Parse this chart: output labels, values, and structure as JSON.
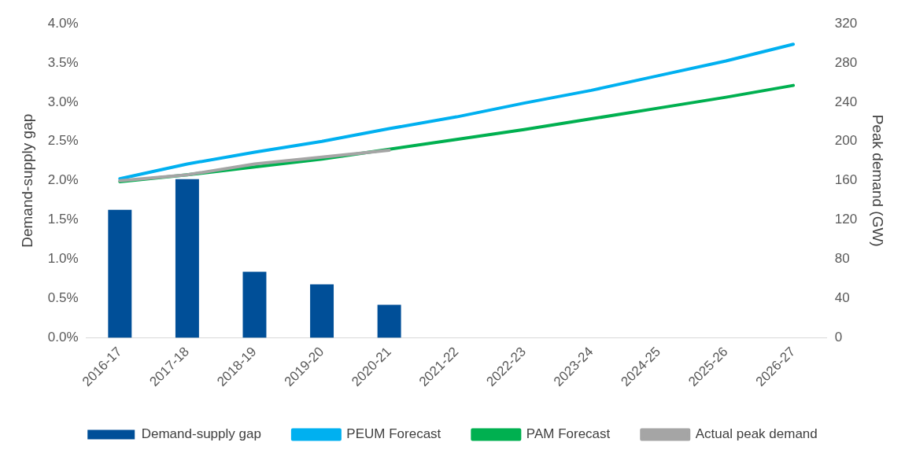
{
  "chart_data": {
    "type": "bar",
    "ylabel": "Demand-supply gap",
    "y2label": "Peak demand (GW)",
    "categories": [
      "2016-17",
      "2017-18",
      "2018-19",
      "2019-20",
      "2020-21",
      "2021-22",
      "2022-23",
      "2023-24",
      "2024-25",
      "2025-26",
      "2026-27"
    ],
    "series": [
      {
        "name": "Demand-supply gap",
        "color": "#004f98",
        "values": [
          1.63,
          2.02,
          0.84,
          0.68,
          0.42,
          null,
          null,
          null,
          null,
          null,
          null
        ]
      },
      {
        "name": "PEUM Forecast",
        "type": "line",
        "axis": "y2",
        "color": "#00b0f0",
        "values": [
          162,
          177,
          189,
          200,
          213,
          225,
          239,
          252,
          267,
          282,
          299
        ]
      },
      {
        "name": "PAM Forecast",
        "type": "line",
        "axis": "y2",
        "color": "#00b050",
        "values": [
          159,
          166,
          174,
          182,
          192,
          202,
          212,
          223,
          234,
          245,
          257
        ]
      },
      {
        "name": "Actual peak demand",
        "type": "line",
        "axis": "y2",
        "color": "#a5a5a5",
        "values": [
          160,
          166,
          177,
          184,
          191,
          null,
          null,
          null,
          null,
          null,
          null
        ]
      }
    ],
    "ylim": [
      0,
      4
    ],
    "yticks": [
      {
        "value": 0,
        "label": "0.0%"
      },
      {
        "value": 0.5,
        "label": "0.5%"
      },
      {
        "value": 1,
        "label": "1.0%"
      },
      {
        "value": 1.5,
        "label": "1.5%"
      },
      {
        "value": 2,
        "label": "2.0%"
      },
      {
        "value": 2.5,
        "label": "2.5%"
      },
      {
        "value": 3,
        "label": "3.0%"
      },
      {
        "value": 3.5,
        "label": "3.5%"
      },
      {
        "value": 4,
        "label": "4.0%"
      }
    ],
    "y2lim": [
      0,
      320
    ],
    "y2ticks": [
      0,
      40,
      80,
      120,
      160,
      200,
      240,
      280,
      320
    ],
    "grid": false,
    "legend": "bottom",
    "marker": "none",
    "line_style": "solid"
  }
}
